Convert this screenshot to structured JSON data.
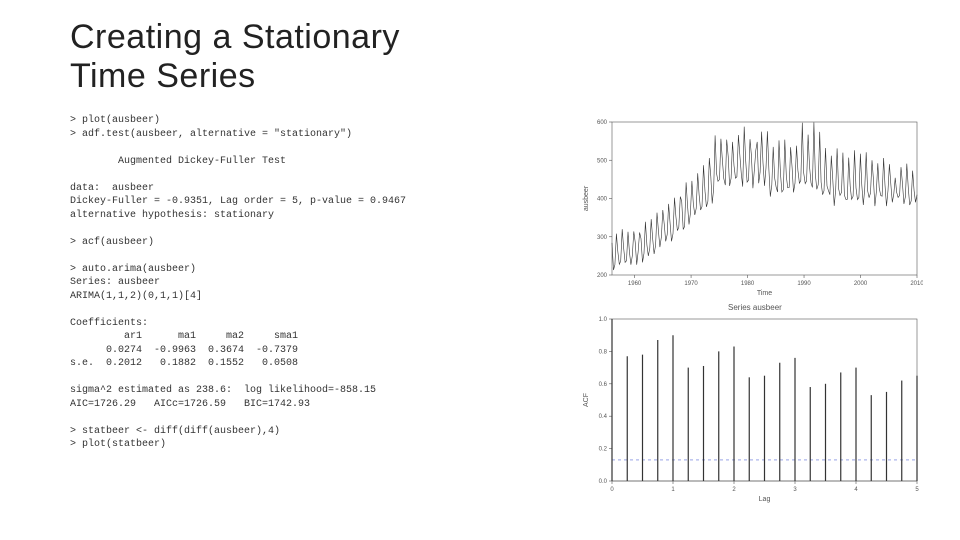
{
  "title_line1": "Creating a Stationary",
  "title_line2": "Time Series",
  "code": {
    "l1": "> plot(ausbeer)",
    "l2": "> adf.test(ausbeer, alternative = \"stationary\")",
    "l3": "        Augmented Dickey-Fuller Test",
    "l4": "data:  ausbeer",
    "l5": "Dickey-Fuller = -0.9351, Lag order = 5, p-value = 0.9467",
    "l6": "alternative hypothesis: stationary",
    "l7": "> acf(ausbeer)",
    "l8": "> auto.arima(ausbeer)",
    "l9": "Series: ausbeer",
    "l10": "ARIMA(1,1,2)(0,1,1)[4]",
    "l11": "Coefficients:",
    "l12": "         ar1      ma1     ma2     sma1",
    "l13": "      0.0274  -0.9963  0.3674  -0.7379",
    "l14": "s.e.  0.2012   0.1882  0.1552   0.0508",
    "l15": "sigma^2 estimated as 238.6:  log likelihood=-858.15",
    "l16": "AIC=1726.29   AICc=1726.59   BIC=1742.93",
    "l17": "> statbeer <- diff(diff(ausbeer),4)",
    "l18": "> plot(statbeer)"
  },
  "ts_plot": {
    "title": "",
    "ylabel": "ausbeer",
    "xlabel": "Time",
    "xlim": [
      1956,
      2010
    ],
    "ylim": [
      200,
      600
    ],
    "xticks": [
      1960,
      1970,
      1980,
      1990,
      2000,
      2010
    ],
    "yticks": [
      200,
      300,
      400,
      500,
      600
    ],
    "line_color": "#333333",
    "line_width": 0.6,
    "background": "#ffffff",
    "series_y": [
      284,
      213,
      227,
      308,
      262,
      228,
      236,
      320,
      272,
      233,
      237,
      313,
      261,
      227,
      250,
      314,
      286,
      227,
      260,
      311,
      295,
      233,
      257,
      339,
      279,
      250,
      270,
      346,
      294,
      255,
      278,
      363,
      313,
      273,
      300,
      370,
      331,
      288,
      306,
      386,
      335,
      288,
      308,
      402,
      353,
      316,
      325,
      405,
      393,
      319,
      327,
      442,
      383,
      332,
      361,
      446,
      387,
      357,
      374,
      466,
      410,
      370,
      379,
      487,
      419,
      378,
      393,
      506,
      458,
      387,
      427,
      565,
      465,
      445,
      450,
      556,
      500,
      452,
      435,
      554,
      510,
      433,
      453,
      548,
      486,
      453,
      457,
      566,
      515,
      464,
      431,
      588,
      503,
      443,
      448,
      555,
      513,
      427,
      473,
      526,
      548,
      440,
      469,
      575,
      493,
      433,
      480,
      576,
      475,
      405,
      435,
      535,
      453,
      430,
      417,
      552,
      464,
      417,
      423,
      554,
      459,
      428,
      429,
      534,
      481,
      416,
      440,
      538,
      474,
      440,
      447,
      598,
      467,
      439,
      446,
      567,
      485,
      441,
      429,
      599,
      464,
      424,
      436,
      574,
      443,
      410,
      420,
      532,
      433,
      421,
      410,
      512,
      449,
      381,
      423,
      531,
      426,
      408,
      416,
      520,
      409,
      398,
      398,
      507,
      432,
      398,
      406,
      526,
      428,
      397,
      403,
      517,
      435,
      383,
      424,
      521,
      421,
      402,
      414,
      500,
      451,
      380,
      416,
      492,
      428,
      408,
      406,
      506,
      435,
      380,
      421,
      490,
      435,
      390,
      412,
      454,
      416,
      403,
      408,
      482,
      438,
      386,
      405,
      491,
      427,
      383,
      394,
      473,
      420,
      390,
      410
    ]
  },
  "acf_plot": {
    "title": "Series ausbeer",
    "ylabel": "ACF",
    "xlabel": "Lag",
    "xlim": [
      0,
      5
    ],
    "ylim": [
      0,
      1.0
    ],
    "xticks": [
      0,
      1,
      2,
      3,
      4,
      5
    ],
    "yticks": [
      0.0,
      0.2,
      0.4,
      0.6,
      0.8,
      1.0
    ],
    "line_color": "#333333",
    "bar_width": 1.2,
    "background": "#ffffff",
    "ci_line_color": "#5b6fd8",
    "ci": 0.13,
    "lags": [
      0.0,
      0.25,
      0.5,
      0.75,
      1.0,
      1.25,
      1.5,
      1.75,
      2.0,
      2.25,
      2.5,
      2.75,
      3.0,
      3.25,
      3.5,
      3.75,
      4.0,
      4.25,
      4.5,
      4.75,
      5.0
    ],
    "values": [
      1.0,
      0.77,
      0.78,
      0.87,
      0.9,
      0.7,
      0.71,
      0.8,
      0.83,
      0.64,
      0.65,
      0.73,
      0.76,
      0.58,
      0.6,
      0.67,
      0.7,
      0.53,
      0.55,
      0.62,
      0.65
    ]
  }
}
